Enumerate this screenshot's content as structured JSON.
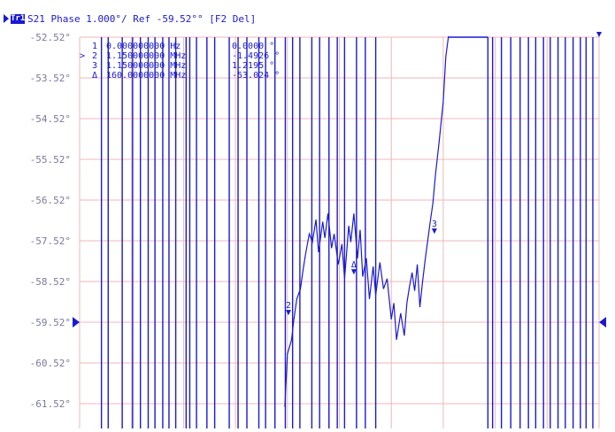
{
  "header": {
    "trace_badge": "Tr1",
    "trace_title": "S21 Phase 1.000°/ Ref -59.52°° [F2 Del]"
  },
  "colors": {
    "trace": "#1a1ad0",
    "grid": "#f0b7b7",
    "axis_text": "#7a7a9a",
    "background": "#ffffff"
  },
  "chart_data": {
    "type": "line",
    "title": "S21 Phase 1.000°/ Ref -59.52°° [F2 Del]",
    "xlabel": "",
    "ylabel": "",
    "yticks": [
      "-52.52°",
      "-53.52°",
      "-54.52°",
      "-55.52°",
      "-56.52°",
      "-57.52°",
      "-58.52°",
      "-59.52°",
      "-60.52°",
      "-61.52°"
    ],
    "ylim": [
      -61.52,
      -52.52
    ],
    "reference_level": "-59.52°",
    "grid": true,
    "x_divisions": 10,
    "wrapping_x_divisions": [
      0.42,
      0.55,
      0.82,
      1.02,
      1.17,
      1.32,
      1.45,
      1.6,
      1.72,
      1.85,
      2.05,
      2.12,
      2.25,
      2.45,
      2.6,
      2.88,
      3.05,
      3.22,
      3.45,
      3.58,
      3.76,
      3.96,
      4.1,
      4.24,
      4.47,
      4.62,
      4.8,
      4.96,
      5.1,
      5.33,
      5.5,
      5.7
    ],
    "wrapping_x_divisions_right": [
      7.86,
      7.95,
      8.12,
      8.3,
      8.48,
      8.64,
      8.78,
      8.93,
      9.06,
      9.21,
      9.35,
      9.5,
      9.64,
      9.75,
      9.88
    ],
    "series": [
      {
        "x_div": [
          3.95,
          4.0,
          4.08,
          4.12,
          4.18,
          4.25,
          4.3,
          4.35,
          4.42,
          4.48,
          4.55,
          4.6,
          4.68,
          4.72,
          4.78,
          4.85,
          4.9,
          4.98,
          5.05,
          5.1,
          5.18,
          5.22,
          5.28,
          5.35,
          5.4,
          5.45,
          5.52,
          5.58,
          5.65,
          5.7,
          5.78,
          5.85,
          5.92,
          6.0,
          6.05,
          6.1,
          6.18,
          6.25,
          6.3,
          6.35,
          6.4,
          6.45,
          6.5,
          6.55,
          6.6,
          6.65,
          6.75
        ],
        "values": [
          -61.6,
          -60.3,
          -59.95,
          -59.5,
          -58.95,
          -58.7,
          -58.25,
          -57.85,
          -57.35,
          -57.55,
          -57.0,
          -57.8,
          -57.05,
          -57.45,
          -56.85,
          -57.7,
          -57.35,
          -58.1,
          -57.6,
          -58.45,
          -57.15,
          -57.55,
          -56.85,
          -57.95,
          -57.25,
          -58.4,
          -57.95,
          -58.95,
          -58.15,
          -58.85,
          -58.05,
          -58.7,
          -58.45,
          -59.45,
          -59.05,
          -59.95,
          -59.3,
          -59.85,
          -59.05,
          -58.65,
          -58.3,
          -58.75,
          -58.1,
          -59.15,
          -58.55,
          -58.0,
          -57.05
        ]
      },
      {
        "x_div": [
          6.75,
          6.8,
          6.85,
          6.92,
          7.0,
          7.05,
          7.1
        ],
        "values": [
          -57.05,
          -56.6,
          -55.9,
          -55.1,
          -54.1,
          -53.0,
          -52.5
        ]
      }
    ],
    "markers": [
      {
        "id": "1",
        "x_div": 10.0,
        "y": -52.52,
        "label": "1"
      },
      {
        "id": "2",
        "x_div": 4.02,
        "y": -59.35,
        "label": "2"
      },
      {
        "id": "3",
        "x_div": 6.83,
        "y": -57.35,
        "label": "3"
      },
      {
        "id": "4",
        "x_div": 5.28,
        "y": -58.35,
        "label": "Δ"
      }
    ],
    "marker_table": [
      {
        "id": "1",
        "prefix": "",
        "stimulus": "0.000000000 Hz",
        "response": "0.0000 °"
      },
      {
        "id": "2",
        "prefix": ">",
        "stimulus": "1.150000000 MHz",
        "response": "-1.4926 °"
      },
      {
        "id": "3",
        "prefix": "",
        "stimulus": "1.150000000 MHz",
        "response": "1.2195 °"
      },
      {
        "id": "Δ",
        "prefix": "",
        "stimulus": "160.0000000 MHz",
        "response": "-53.024 °"
      }
    ]
  }
}
